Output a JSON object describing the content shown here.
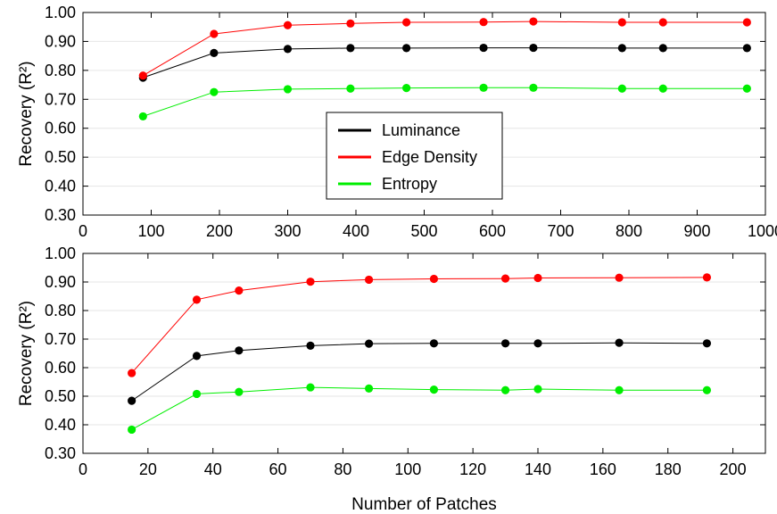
{
  "colors": {
    "luminance": "#000000",
    "edge_density": "#ff0000",
    "entropy": "#00ee00",
    "grid": "#e6e6e6",
    "axis": "#000000"
  },
  "chart_data": [
    {
      "type": "line",
      "ylabel": "Recovery (R²)",
      "xlabel": "",
      "xlim": [
        0,
        1000
      ],
      "ylim": [
        0.3,
        1.0
      ],
      "xticks": [
        "0",
        "100",
        "200",
        "300",
        "400",
        "500",
        "600",
        "700",
        "800",
        "900",
        "1000"
      ],
      "yticks": [
        "0.30",
        "0.40",
        "0.50",
        "0.60",
        "0.70",
        "0.80",
        "0.90",
        "1.00"
      ],
      "grid": "horizontal",
      "legend_position": "center",
      "x": [
        88,
        192,
        300,
        392,
        474,
        587,
        660,
        790,
        850,
        973
      ],
      "series": [
        {
          "name": "Luminance",
          "color_key": "luminance",
          "values": [
            0.775,
            0.86,
            0.874,
            0.877,
            0.877,
            0.878,
            0.878,
            0.877,
            0.877,
            0.877
          ]
        },
        {
          "name": "Edge Density",
          "color_key": "edge_density",
          "values": [
            0.782,
            0.926,
            0.956,
            0.962,
            0.966,
            0.967,
            0.969,
            0.966,
            0.966,
            0.966
          ]
        },
        {
          "name": "Entropy",
          "color_key": "entropy",
          "values": [
            0.641,
            0.725,
            0.735,
            0.737,
            0.739,
            0.74,
            0.74,
            0.737,
            0.737,
            0.737
          ]
        }
      ]
    },
    {
      "type": "line",
      "ylabel": "Recovery (R²)",
      "xlabel": "Number of Patches",
      "xlim": [
        0,
        210
      ],
      "ylim": [
        0.3,
        1.0
      ],
      "xticks": [
        "0",
        "20",
        "40",
        "60",
        "80",
        "100",
        "120",
        "140",
        "160",
        "180",
        "200"
      ],
      "yticks": [
        "0.30",
        "0.40",
        "0.50",
        "0.60",
        "0.70",
        "0.80",
        "0.90",
        "1.00"
      ],
      "grid": "horizontal",
      "x": [
        15,
        35,
        48,
        70,
        88,
        108,
        130,
        140,
        165,
        192
      ],
      "series": [
        {
          "name": "Luminance",
          "color_key": "luminance",
          "values": [
            0.484,
            0.641,
            0.66,
            0.677,
            0.684,
            0.685,
            0.685,
            0.685,
            0.687,
            0.685
          ]
        },
        {
          "name": "Edge Density",
          "color_key": "edge_density",
          "values": [
            0.581,
            0.838,
            0.87,
            0.901,
            0.908,
            0.911,
            0.912,
            0.914,
            0.915,
            0.916
          ]
        },
        {
          "name": "Entropy",
          "color_key": "entropy",
          "values": [
            0.383,
            0.508,
            0.515,
            0.531,
            0.527,
            0.523,
            0.521,
            0.525,
            0.521,
            0.521
          ]
        }
      ]
    }
  ]
}
